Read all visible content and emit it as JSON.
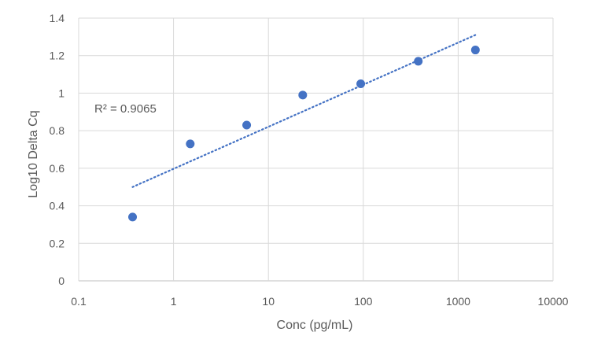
{
  "chart_data": {
    "type": "scatter",
    "xlabel": "Conc (pg/mL)",
    "ylabel": "Log10 Delta Cq",
    "xscale": "log",
    "xlim": [
      0.1,
      10000
    ],
    "ylim": [
      0,
      1.4
    ],
    "xticks": [
      "0.1",
      "1",
      "10",
      "100",
      "1000",
      "10000"
    ],
    "yticks": [
      "0",
      "0.2",
      "0.4",
      "0.6",
      "0.8",
      "1",
      "1.2",
      "1.4"
    ],
    "grid": true,
    "marker_color": "#4472C4",
    "trendline_color": "#4472C4",
    "series": [
      {
        "x": [
          0.37,
          1.5,
          5.9,
          23,
          94,
          380,
          1520
        ],
        "y": [
          0.34,
          0.73,
          0.83,
          0.99,
          1.05,
          1.17,
          1.23
        ]
      }
    ],
    "trendline": {
      "type": "logarithmic",
      "style": "dotted",
      "x": [
        0.37,
        1520
      ],
      "y": [
        0.5,
        1.31
      ],
      "r2_label": "R² = 0.9065"
    }
  }
}
